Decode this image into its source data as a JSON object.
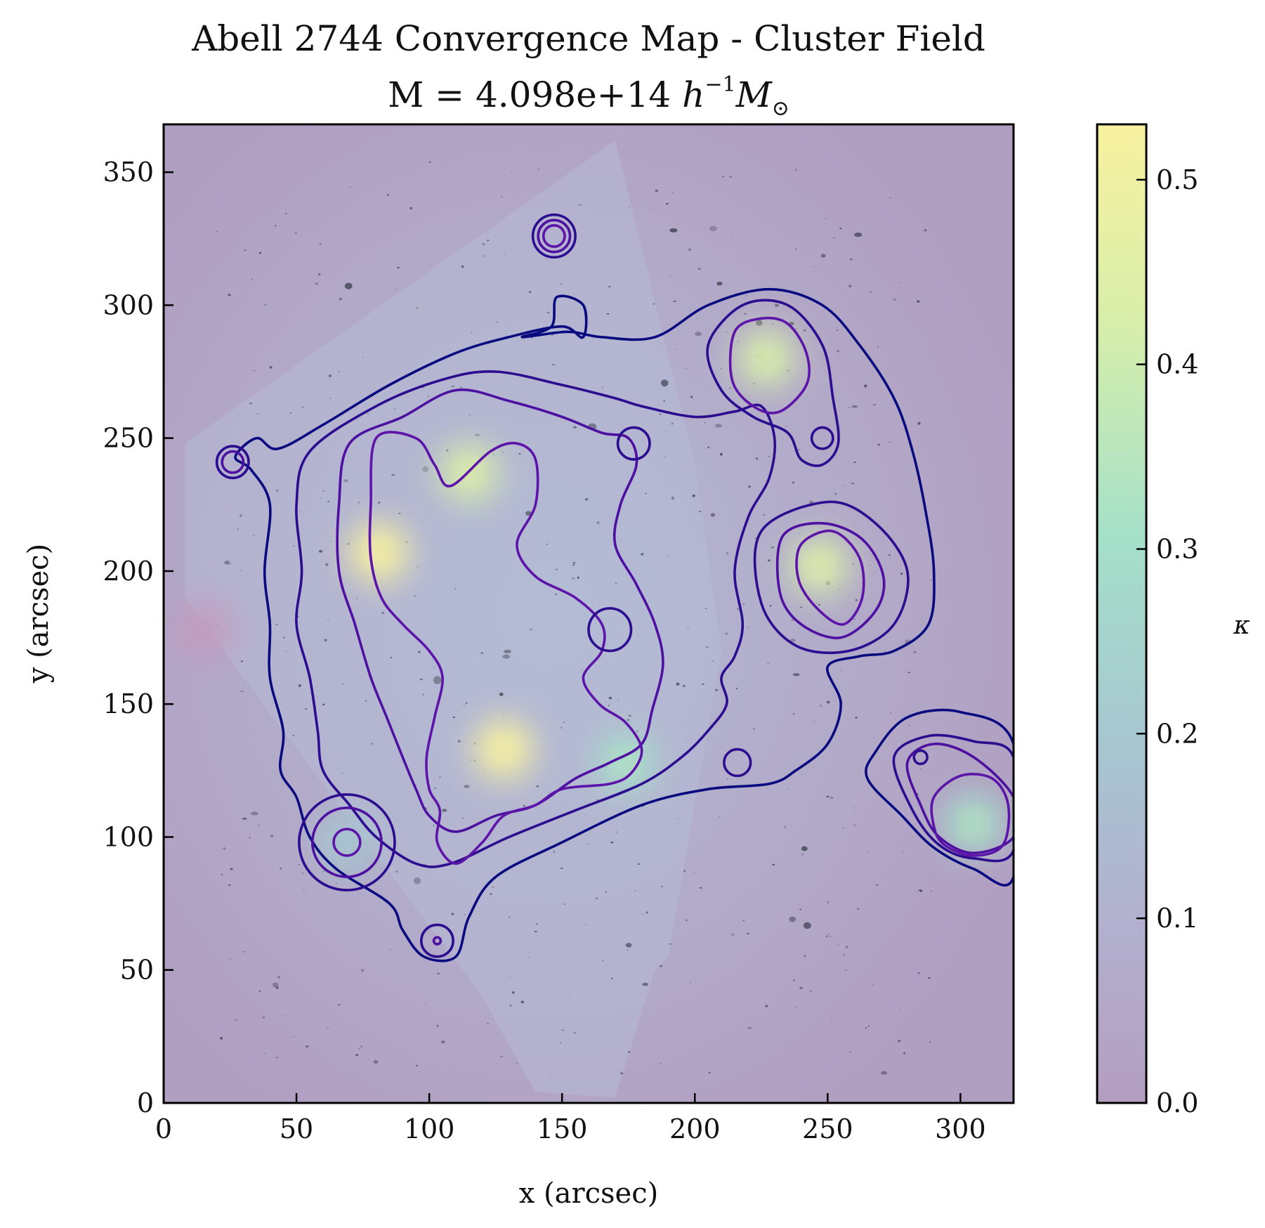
{
  "chart_data": {
    "type": "heatmap",
    "title": "Abell 2744 Convergence Map - Cluster Field",
    "subtitle_prefix": "M = 4.098e+14 ",
    "subtitle_math_h": "h",
    "subtitle_math_exp": "−1",
    "subtitle_math_m": "M",
    "subtitle_math_sun": "⊙",
    "xlabel": "x (arcsec)",
    "ylabel": "y (arcsec)",
    "colorbar_label": "κ",
    "xlim": [
      0,
      320
    ],
    "ylim": [
      0,
      368
    ],
    "xticks": [
      0,
      50,
      100,
      150,
      200,
      250,
      300
    ],
    "yticks": [
      0,
      50,
      100,
      150,
      200,
      250,
      300,
      350
    ],
    "colorbar_range": [
      0.0,
      0.53
    ],
    "colorbar_ticks": [
      "0.0",
      "0.1",
      "0.2",
      "0.3",
      "0.4",
      "0.5"
    ],
    "colormap": [
      "#b49ec0",
      "#b2b1cf",
      "#a6c8d0",
      "#a5e0c9",
      "#d8eeaa",
      "#f8f1a0"
    ],
    "contour_colors": [
      "#0a0a80",
      "#2c0d8f",
      "#4d10a0",
      "#5d14a8"
    ],
    "peaks": [
      {
        "x": 115,
        "y": 237,
        "kappa": 0.46
      },
      {
        "x": 81,
        "y": 207,
        "kappa": 0.48
      },
      {
        "x": 128,
        "y": 133,
        "kappa": 0.53
      },
      {
        "x": 174,
        "y": 128,
        "kappa": 0.36
      },
      {
        "x": 227,
        "y": 280,
        "kappa": 0.38
      },
      {
        "x": 247,
        "y": 202,
        "kappa": 0.44
      },
      {
        "x": 305,
        "y": 105,
        "kappa": 0.34
      },
      {
        "x": 69,
        "y": 98,
        "kappa": 0.22
      },
      {
        "x": 15,
        "y": 178,
        "kappa": 0.0
      }
    ],
    "contours": [
      {
        "level": 1,
        "points": [
          [
            27,
            243
          ],
          [
            35,
            250
          ],
          [
            43,
            246
          ],
          [
            60,
            255
          ],
          [
            85,
            270
          ],
          [
            110,
            282
          ],
          [
            130,
            288
          ],
          [
            150,
            292
          ],
          [
            158,
            288
          ],
          [
            158,
            300
          ],
          [
            148,
            303
          ],
          [
            146,
            292
          ],
          [
            135,
            288
          ],
          [
            152,
            290
          ],
          [
            165,
            288
          ],
          [
            185,
            288
          ],
          [
            205,
            300
          ],
          [
            228,
            306
          ],
          [
            248,
            300
          ],
          [
            262,
            285
          ],
          [
            275,
            265
          ],
          [
            282,
            245
          ],
          [
            287,
            222
          ],
          [
            290,
            200
          ],
          [
            288,
            180
          ],
          [
            275,
            170
          ],
          [
            262,
            168
          ],
          [
            250,
            164
          ],
          [
            255,
            150
          ],
          [
            250,
            135
          ],
          [
            238,
            125
          ],
          [
            228,
            120
          ],
          [
            205,
            118
          ],
          [
            180,
            112
          ],
          [
            150,
            98
          ],
          [
            125,
            85
          ],
          [
            115,
            70
          ],
          [
            110,
            55
          ],
          [
            98,
            55
          ],
          [
            90,
            65
          ],
          [
            85,
            75
          ],
          [
            65,
            88
          ],
          [
            55,
            100
          ],
          [
            50,
            115
          ],
          [
            44,
            125
          ],
          [
            45,
            140
          ],
          [
            40,
            160
          ],
          [
            40,
            180
          ],
          [
            38,
            200
          ],
          [
            40,
            225
          ],
          [
            33,
            238
          ]
        ]
      },
      {
        "level": 2,
        "points": [
          [
            55,
            245
          ],
          [
            80,
            262
          ],
          [
            105,
            272
          ],
          [
            125,
            275
          ],
          [
            150,
            270
          ],
          [
            170,
            265
          ],
          [
            180,
            262
          ],
          [
            200,
            258
          ],
          [
            215,
            260
          ],
          [
            225,
            262
          ],
          [
            230,
            250
          ],
          [
            228,
            235
          ],
          [
            220,
            220
          ],
          [
            215,
            200
          ],
          [
            218,
            180
          ],
          [
            215,
            168
          ],
          [
            210,
            160
          ],
          [
            212,
            150
          ],
          [
            205,
            140
          ],
          [
            195,
            130
          ],
          [
            180,
            120
          ],
          [
            155,
            110
          ],
          [
            130,
            100
          ],
          [
            108,
            90
          ],
          [
            95,
            90
          ],
          [
            80,
            100
          ],
          [
            70,
            112
          ],
          [
            60,
            125
          ],
          [
            58,
            140
          ],
          [
            55,
            160
          ],
          [
            50,
            180
          ],
          [
            52,
            200
          ],
          [
            50,
            225
          ]
        ]
      },
      {
        "level": 3,
        "points": [
          [
            70,
            248
          ],
          [
            90,
            258
          ],
          [
            110,
            268
          ],
          [
            130,
            264
          ],
          [
            150,
            258
          ],
          [
            165,
            252
          ],
          [
            175,
            250
          ],
          [
            178,
            240
          ],
          [
            172,
            225
          ],
          [
            170,
            210
          ],
          [
            178,
            195
          ],
          [
            185,
            180
          ],
          [
            188,
            165
          ],
          [
            184,
            148
          ],
          [
            180,
            135
          ],
          [
            168,
            128
          ],
          [
            155,
            122
          ],
          [
            140,
            112
          ],
          [
            125,
            108
          ],
          [
            110,
            102
          ],
          [
            100,
            108
          ],
          [
            95,
            118
          ],
          [
            90,
            130
          ],
          [
            84,
            145
          ],
          [
            78,
            160
          ],
          [
            72,
            180
          ],
          [
            66,
            200
          ],
          [
            66,
            225
          ]
        ]
      },
      {
        "level": 4,
        "points": [
          [
            80,
            250
          ],
          [
            95,
            250
          ],
          [
            102,
            240
          ],
          [
            108,
            232
          ],
          [
            123,
            245
          ],
          [
            133,
            248
          ],
          [
            140,
            242
          ],
          [
            140,
            225
          ],
          [
            133,
            210
          ],
          [
            140,
            198
          ],
          [
            155,
            190
          ],
          [
            165,
            180
          ],
          [
            165,
            170
          ],
          [
            158,
            160
          ],
          [
            164,
            150
          ],
          [
            174,
            143
          ],
          [
            180,
            133
          ],
          [
            176,
            124
          ],
          [
            168,
            120
          ],
          [
            150,
            118
          ],
          [
            140,
            112
          ],
          [
            128,
            108
          ],
          [
            120,
            98
          ],
          [
            110,
            90
          ],
          [
            103,
            98
          ],
          [
            104,
            110
          ],
          [
            100,
            118
          ],
          [
            99,
            130
          ],
          [
            102,
            145
          ],
          [
            105,
            160
          ],
          [
            100,
            170
          ],
          [
            90,
            180
          ],
          [
            82,
            190
          ],
          [
            78,
            205
          ],
          [
            78,
            225
          ]
        ]
      },
      {
        "level": 4,
        "points": [
          [
            215,
            290
          ],
          [
            225,
            295
          ],
          [
            235,
            293
          ],
          [
            242,
            282
          ],
          [
            242,
            270
          ],
          [
            232,
            260
          ],
          [
            222,
            262
          ],
          [
            214,
            272
          ]
        ]
      },
      {
        "level": 2,
        "points": [
          [
            205,
            285
          ],
          [
            218,
            300
          ],
          [
            235,
            300
          ],
          [
            248,
            285
          ],
          [
            252,
            265
          ],
          [
            254,
            248
          ],
          [
            248,
            240
          ],
          [
            240,
            242
          ],
          [
            235,
            252
          ],
          [
            222,
            258
          ],
          [
            210,
            268
          ]
        ]
      },
      {
        "level": 3,
        "points": [
          [
            233,
            213
          ],
          [
            248,
            218
          ],
          [
            263,
            212
          ],
          [
            271,
            198
          ],
          [
            268,
            185
          ],
          [
            255,
            175
          ],
          [
            240,
            180
          ],
          [
            232,
            192
          ]
        ]
      },
      {
        "level": 2,
        "points": [
          [
            225,
            215
          ],
          [
            250,
            226
          ],
          [
            268,
            218
          ],
          [
            280,
            200
          ],
          [
            275,
            180
          ],
          [
            258,
            170
          ],
          [
            238,
            172
          ],
          [
            225,
            188
          ]
        ]
      },
      {
        "level": 4,
        "points": [
          [
            240,
            210
          ],
          [
            252,
            215
          ],
          [
            262,
            205
          ],
          [
            263,
            190
          ],
          [
            256,
            180
          ],
          [
            246,
            186
          ],
          [
            239,
            197
          ]
        ]
      },
      {
        "level": 1,
        "points": [
          [
            268,
            132
          ],
          [
            280,
            145
          ],
          [
            300,
            147
          ],
          [
            320,
            135
          ],
          [
            320,
            85
          ],
          [
            305,
            88
          ],
          [
            290,
            96
          ],
          [
            278,
            108
          ],
          [
            265,
            122
          ]
        ]
      },
      {
        "level": 2,
        "points": [
          [
            275,
            130
          ],
          [
            288,
            138
          ],
          [
            305,
            136
          ],
          [
            320,
            130
          ],
          [
            320,
            95
          ],
          [
            305,
            92
          ],
          [
            292,
            97
          ],
          [
            282,
            110
          ]
        ]
      },
      {
        "level": 3,
        "points": [
          [
            280,
            128
          ],
          [
            290,
            135
          ],
          [
            305,
            130
          ],
          [
            320,
            115
          ],
          [
            320,
            100
          ],
          [
            305,
            94
          ],
          [
            292,
            100
          ],
          [
            285,
            112
          ]
        ]
      },
      {
        "level": 4,
        "points": [
          [
            290,
            115
          ],
          [
            300,
            123
          ],
          [
            312,
            122
          ],
          [
            318,
            112
          ],
          [
            316,
            97
          ],
          [
            305,
            93
          ],
          [
            294,
            97
          ],
          [
            290,
            104
          ]
        ]
      }
    ],
    "small_rings": [
      {
        "x": 147,
        "y": 326,
        "r": [
          8,
          6,
          4
        ]
      },
      {
        "x": 26,
        "y": 241,
        "r": [
          6,
          4
        ]
      },
      {
        "x": 177,
        "y": 248,
        "r": [
          6
        ]
      },
      {
        "x": 248,
        "y": 250,
        "r": [
          4
        ]
      },
      {
        "x": 168,
        "y": 178,
        "r": [
          8
        ]
      },
      {
        "x": 216,
        "y": 128,
        "r": [
          5
        ]
      },
      {
        "x": 285,
        "y": 130,
        "r": [
          2.5
        ]
      },
      {
        "x": 69,
        "y": 98,
        "r": [
          18,
          13,
          5
        ]
      },
      {
        "x": 103,
        "y": 61,
        "r": [
          6,
          1.3
        ]
      }
    ],
    "field_corners": [
      [
        8,
        248
      ],
      [
        170,
        362
      ],
      [
        200,
        240
      ],
      [
        210,
        170
      ],
      [
        190,
        55
      ],
      [
        185,
        50
      ],
      [
        170,
        2
      ],
      [
        140,
        4
      ],
      [
        120,
        40
      ],
      [
        30,
        160
      ],
      [
        8,
        190
      ]
    ]
  }
}
